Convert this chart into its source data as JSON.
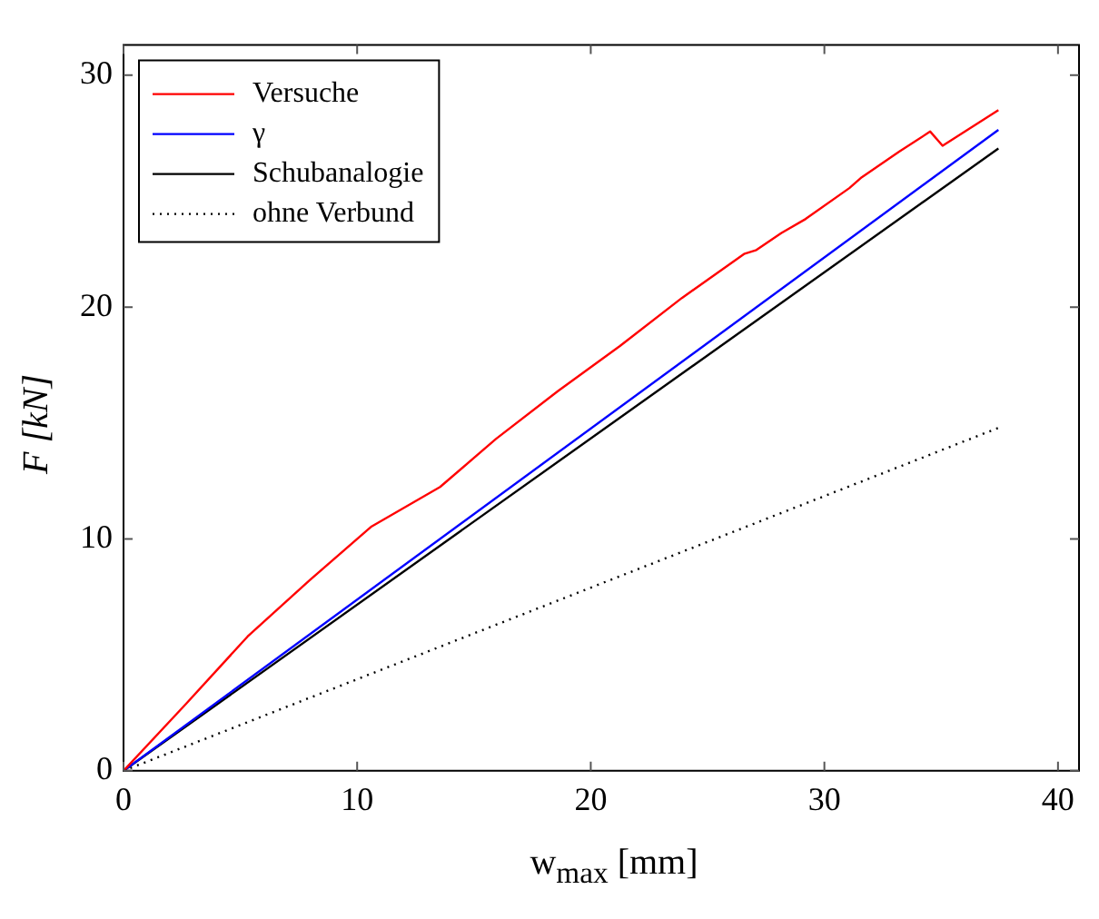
{
  "chart_data": {
    "type": "line",
    "xlabel": "w$_{max}$ [mm]",
    "ylabel": "F [kN]",
    "xlim": [
      0,
      40.9
    ],
    "ylim": [
      0,
      31.3
    ],
    "xticks": [
      0,
      10,
      20,
      30,
      40
    ],
    "yticks": [
      0,
      10,
      20,
      30
    ],
    "legend": "top left",
    "marker": "none",
    "series": [
      {
        "name": "Versuche",
        "color": "#ff0000",
        "line_style": "solid",
        "x": [
          0,
          2.66,
          5.31,
          7.97,
          10.62,
          13.55,
          15.94,
          18.59,
          21.25,
          23.9,
          26.56,
          27.09,
          28.15,
          29.2,
          31.07,
          31.6,
          33.2,
          34.53,
          35.06,
          37.45
        ],
        "values": [
          0,
          2.87,
          5.79,
          8.22,
          10.54,
          12.24,
          14.31,
          16.37,
          18.32,
          20.39,
          22.29,
          22.46,
          23.19,
          23.8,
          25.13,
          25.6,
          26.7,
          27.57,
          26.96,
          28.49
        ]
      },
      {
        "name": "γ",
        "color": "#0000ff",
        "line_style": "solid",
        "x": [
          0,
          37.45
        ],
        "values": [
          0,
          27.64
        ]
      },
      {
        "name": "Schubanalogie",
        "color": "#000000",
        "line_style": "solid",
        "x": [
          0,
          37.45
        ],
        "values": [
          0,
          26.84
        ]
      },
      {
        "name": "ohne Verbund",
        "color": "#000000",
        "line_style": "dotted",
        "x": [
          0,
          37.45
        ],
        "values": [
          0,
          14.79
        ]
      }
    ]
  }
}
